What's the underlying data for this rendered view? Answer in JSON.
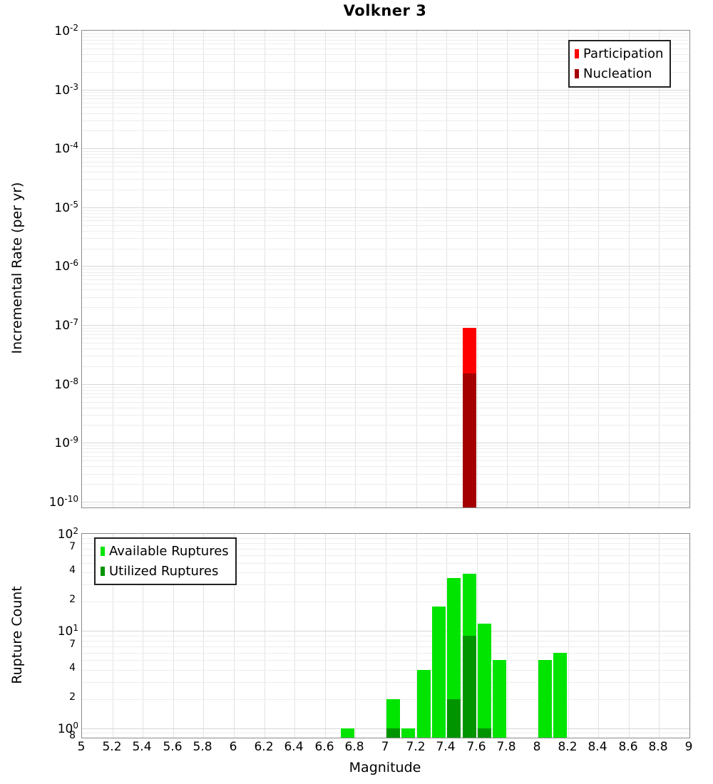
{
  "title": "Volkner 3",
  "chart_data": [
    {
      "type": "bar",
      "panel": "incremental-rate",
      "title": "Volkner 3",
      "ylabel": "Incremental Rate (per yr)",
      "xlabel": "",
      "yscale": "log",
      "ylim": [
        8e-11,
        0.01
      ],
      "xlim": [
        5,
        9
      ],
      "grid": true,
      "bar_width": 0.1,
      "legend_position": "top-right",
      "legend": [
        {
          "label": "Participation",
          "color": "#ff0000"
        },
        {
          "label": "Nucleation",
          "color": "#a40000"
        }
      ],
      "series": [
        {
          "name": "Participation",
          "color": "#ff0000",
          "points": [
            {
              "x": 7.55,
              "y": 9e-08
            }
          ]
        },
        {
          "name": "Nucleation",
          "color": "#a40000",
          "points": [
            {
              "x": 7.55,
              "y": 1.5e-08
            }
          ]
        }
      ],
      "y_ticks": [
        {
          "v": 0.01,
          "base": "10",
          "exp": "-2"
        },
        {
          "v": 0.001,
          "base": "10",
          "exp": "-3"
        },
        {
          "v": 0.0001,
          "base": "10",
          "exp": "-4"
        },
        {
          "v": 1e-05,
          "base": "10",
          "exp": "-5"
        },
        {
          "v": 1e-06,
          "base": "10",
          "exp": "-6"
        },
        {
          "v": 1e-07,
          "base": "10",
          "exp": "-7"
        },
        {
          "v": 1e-08,
          "base": "10",
          "exp": "-8"
        },
        {
          "v": 1e-09,
          "base": "10",
          "exp": "-9"
        },
        {
          "v": 1e-10,
          "base": "10",
          "exp": "-10"
        }
      ]
    },
    {
      "type": "bar",
      "panel": "rupture-count",
      "title": "",
      "ylabel": "Rupture Count",
      "xlabel": "Magnitude",
      "yscale": "log",
      "ylim": [
        0.8,
        100
      ],
      "xlim": [
        5,
        9
      ],
      "grid": true,
      "bar_width": 0.1,
      "legend_position": "top-left",
      "legend": [
        {
          "label": "Available Ruptures",
          "color": "#00e400"
        },
        {
          "label": "Utilized Ruptures",
          "color": "#009400"
        }
      ],
      "series": [
        {
          "name": "Available Ruptures",
          "color": "#00e400",
          "points": [
            {
              "x": 6.75,
              "y": 1
            },
            {
              "x": 7.05,
              "y": 2
            },
            {
              "x": 7.15,
              "y": 1
            },
            {
              "x": 7.25,
              "y": 4
            },
            {
              "x": 7.35,
              "y": 18
            },
            {
              "x": 7.45,
              "y": 35
            },
            {
              "x": 7.55,
              "y": 39
            },
            {
              "x": 7.65,
              "y": 12
            },
            {
              "x": 7.75,
              "y": 5
            },
            {
              "x": 8.05,
              "y": 5
            },
            {
              "x": 8.15,
              "y": 6
            }
          ]
        },
        {
          "name": "Utilized Ruptures",
          "color": "#009400",
          "points": [
            {
              "x": 7.05,
              "y": 1
            },
            {
              "x": 7.45,
              "y": 2
            },
            {
              "x": 7.55,
              "y": 9
            },
            {
              "x": 7.65,
              "y": 1
            }
          ]
        }
      ],
      "y_ticks": [
        {
          "v": 100,
          "base": "10",
          "exp": "2"
        },
        {
          "v": 70,
          "text": "7"
        },
        {
          "v": 40,
          "text": "4"
        },
        {
          "v": 20,
          "text": "2"
        },
        {
          "v": 10,
          "base": "10",
          "exp": "1"
        },
        {
          "v": 7,
          "text": "7"
        },
        {
          "v": 4,
          "text": "4"
        },
        {
          "v": 2,
          "text": "2"
        },
        {
          "v": 1,
          "base": "10",
          "exp": "0"
        },
        {
          "v": 0.8,
          "text": "8"
        }
      ],
      "x_tick_labels": [
        "5",
        "5.2",
        "5.4",
        "5.6",
        "5.8",
        "6",
        "6.2",
        "6.4",
        "6.6",
        "6.8",
        "7",
        "7.2",
        "7.4",
        "7.6",
        "7.8",
        "8",
        "8.2",
        "8.4",
        "8.6",
        "8.8",
        "9"
      ]
    }
  ]
}
